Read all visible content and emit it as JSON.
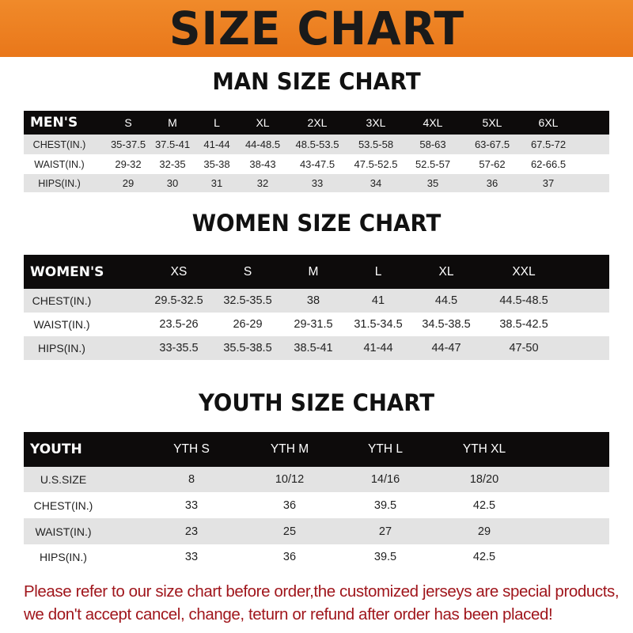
{
  "banner": {
    "title": "SIZE CHART"
  },
  "men": {
    "title": "MAN SIZE CHART",
    "header": [
      "MEN'S",
      "S",
      "M",
      "L",
      "XL",
      "2XL",
      "3XL",
      "4XL",
      "5XL",
      "6XL"
    ],
    "rows": [
      [
        "CHEST(IN.)",
        "35-37.5",
        "37.5-41",
        "41-44",
        "44-48.5",
        "48.5-53.5",
        "53.5-58",
        "58-63",
        "63-67.5",
        "67.5-72"
      ],
      [
        "WAIST(IN.)",
        "29-32",
        "32-35",
        "35-38",
        "38-43",
        "43-47.5",
        "47.5-52.5",
        "52.5-57",
        "57-62",
        "62-66.5"
      ],
      [
        "HIPS(IN.)",
        "29",
        "30",
        "31",
        "32",
        "33",
        "34",
        "35",
        "36",
        "37"
      ]
    ]
  },
  "women": {
    "title": "WOMEN SIZE CHART",
    "header": [
      "WOMEN'S",
      "XS",
      "S",
      "M",
      "L",
      "XL",
      "XXL"
    ],
    "rows": [
      [
        "CHEST(IN.)",
        "29.5-32.5",
        "32.5-35.5",
        "38",
        "41",
        "44.5",
        "44.5-48.5"
      ],
      [
        "WAIST(IN.)",
        "23.5-26",
        "26-29",
        "29-31.5",
        "31.5-34.5",
        "34.5-38.5",
        "38.5-42.5"
      ],
      [
        "HIPS(IN.)",
        "33-35.5",
        "35.5-38.5",
        "38.5-41",
        "41-44",
        "44-47",
        "47-50"
      ]
    ]
  },
  "youth": {
    "title": "YOUTH SIZE CHART",
    "header": [
      "YOUTH",
      "YTH S",
      "YTH M",
      "YTH L",
      "YTH XL"
    ],
    "rows": [
      [
        "U.S.SIZE",
        "8",
        "10/12",
        "14/16",
        "18/20"
      ],
      [
        "CHEST(IN.)",
        "33",
        "36",
        "39.5",
        "42.5"
      ],
      [
        "WAIST(IN.)",
        "23",
        "25",
        "27",
        "29"
      ],
      [
        "HIPS(IN.)",
        "33",
        "36",
        "39.5",
        "42.5"
      ]
    ]
  },
  "notice": {
    "line1": "Please refer to our size chart before order,the customized jerseys are special products,",
    "line2": "we don't accept cancel, change, teturn or refund after order has been placed!"
  },
  "colors": {
    "banner": "#ec7f22",
    "header_row": "#0d0b0b",
    "stripe": "#e3e3e3",
    "notice": "#a0161c"
  }
}
